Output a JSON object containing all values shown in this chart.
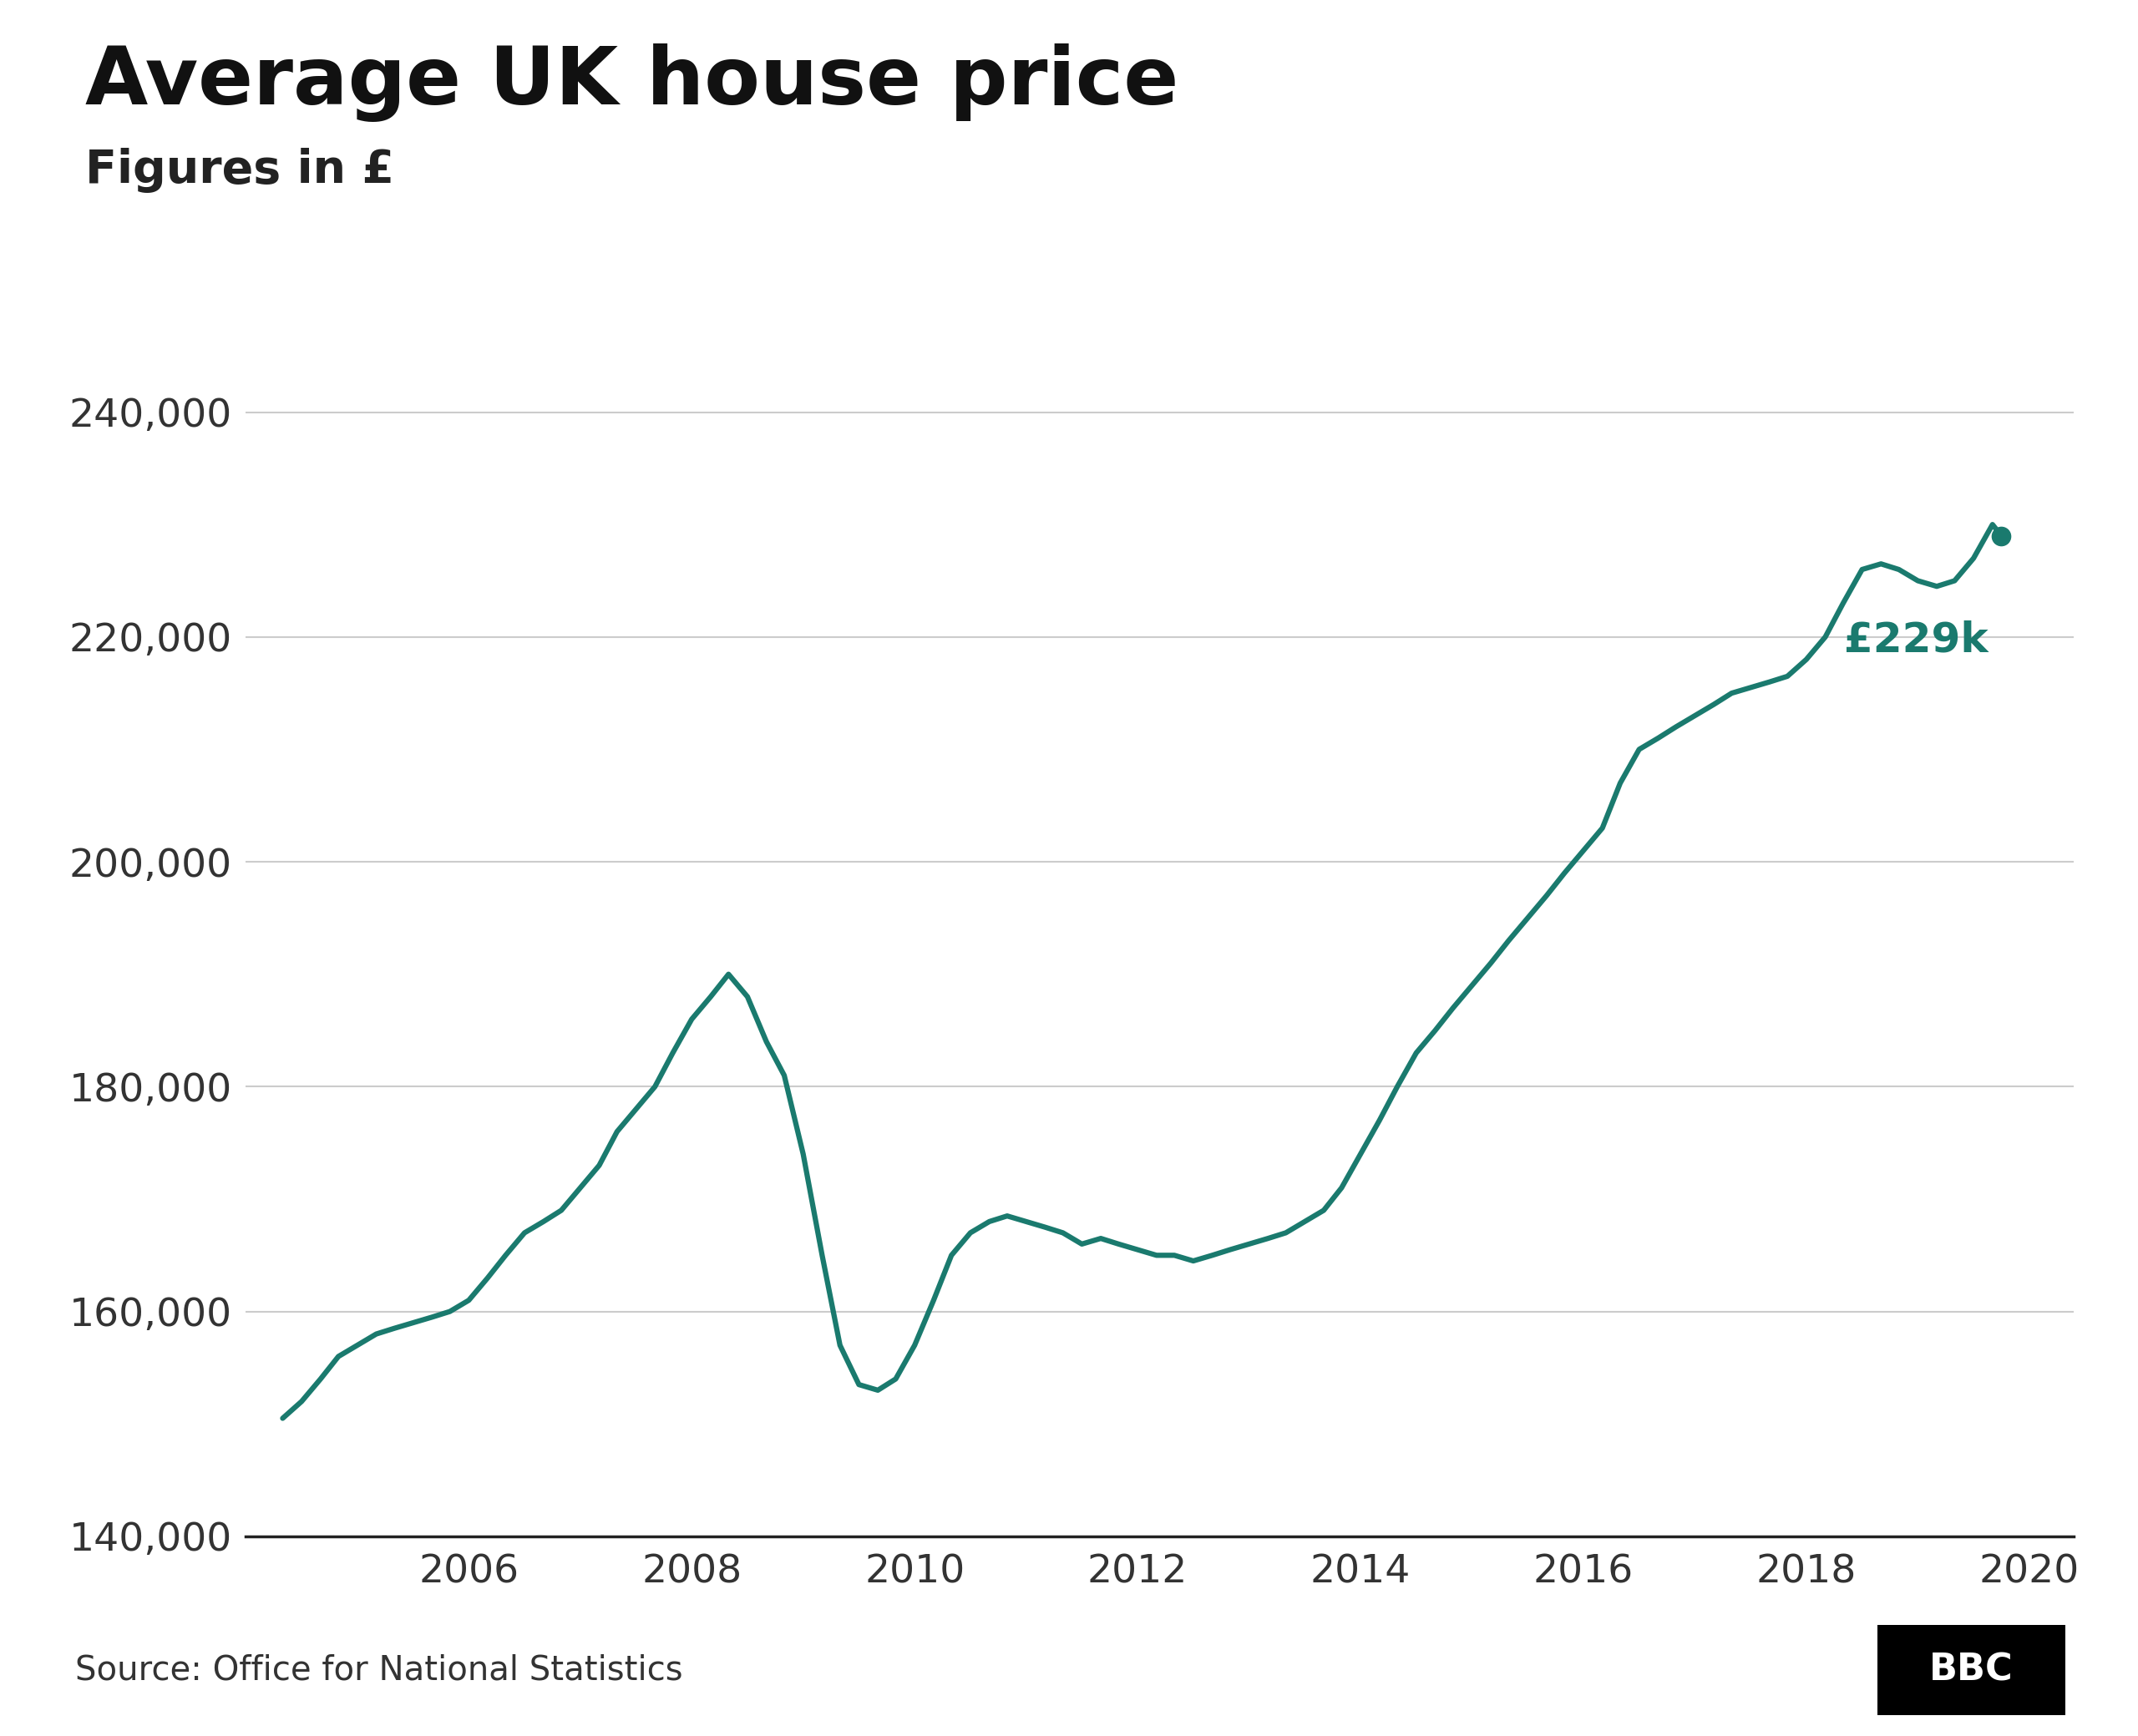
{
  "title": "Average UK house price",
  "subtitle": "Figures in £",
  "source": "Source: Office for National Statistics",
  "bbc_label": "BBC",
  "line_color": "#1a7a6e",
  "annotation_color": "#1a7a6e",
  "background_color": "#ffffff",
  "grid_color": "#cccccc",
  "ylim": [
    140000,
    245000
  ],
  "yticks": [
    140000,
    160000,
    180000,
    200000,
    220000,
    240000
  ],
  "annotation_text": "£229k",
  "last_x": 2019.75,
  "last_y": 229000,
  "xlim": [
    2004.0,
    2020.4
  ],
  "xticks": [
    2006,
    2008,
    2010,
    2012,
    2014,
    2016,
    2018,
    2020
  ],
  "data": [
    [
      2004.33,
      150500
    ],
    [
      2004.5,
      152000
    ],
    [
      2004.67,
      154000
    ],
    [
      2004.83,
      156000
    ],
    [
      2005.0,
      157000
    ],
    [
      2005.17,
      158000
    ],
    [
      2005.33,
      158500
    ],
    [
      2005.5,
      159000
    ],
    [
      2005.67,
      159500
    ],
    [
      2005.83,
      160000
    ],
    [
      2006.0,
      161000
    ],
    [
      2006.17,
      163000
    ],
    [
      2006.33,
      165000
    ],
    [
      2006.5,
      167000
    ],
    [
      2006.67,
      168000
    ],
    [
      2006.83,
      169000
    ],
    [
      2007.0,
      171000
    ],
    [
      2007.17,
      173000
    ],
    [
      2007.33,
      176000
    ],
    [
      2007.5,
      178000
    ],
    [
      2007.67,
      180000
    ],
    [
      2007.83,
      183000
    ],
    [
      2008.0,
      186000
    ],
    [
      2008.17,
      188000
    ],
    [
      2008.33,
      190000
    ],
    [
      2008.5,
      188000
    ],
    [
      2008.67,
      184000
    ],
    [
      2008.83,
      181000
    ],
    [
      2009.0,
      174000
    ],
    [
      2009.17,
      165000
    ],
    [
      2009.33,
      157000
    ],
    [
      2009.5,
      153500
    ],
    [
      2009.67,
      153000
    ],
    [
      2009.83,
      154000
    ],
    [
      2010.0,
      157000
    ],
    [
      2010.17,
      161000
    ],
    [
      2010.33,
      165000
    ],
    [
      2010.5,
      167000
    ],
    [
      2010.67,
      168000
    ],
    [
      2010.83,
      168500
    ],
    [
      2011.0,
      168000
    ],
    [
      2011.17,
      167500
    ],
    [
      2011.33,
      167000
    ],
    [
      2011.5,
      166000
    ],
    [
      2011.67,
      166500
    ],
    [
      2011.83,
      166000
    ],
    [
      2012.0,
      165500
    ],
    [
      2012.17,
      165000
    ],
    [
      2012.33,
      165000
    ],
    [
      2012.5,
      164500
    ],
    [
      2012.67,
      165000
    ],
    [
      2012.83,
      165500
    ],
    [
      2013.0,
      166000
    ],
    [
      2013.17,
      166500
    ],
    [
      2013.33,
      167000
    ],
    [
      2013.5,
      168000
    ],
    [
      2013.67,
      169000
    ],
    [
      2013.83,
      171000
    ],
    [
      2014.0,
      174000
    ],
    [
      2014.17,
      177000
    ],
    [
      2014.33,
      180000
    ],
    [
      2014.5,
      183000
    ],
    [
      2014.67,
      185000
    ],
    [
      2014.83,
      187000
    ],
    [
      2015.0,
      189000
    ],
    [
      2015.17,
      191000
    ],
    [
      2015.33,
      193000
    ],
    [
      2015.5,
      195000
    ],
    [
      2015.67,
      197000
    ],
    [
      2015.83,
      199000
    ],
    [
      2016.0,
      201000
    ],
    [
      2016.17,
      203000
    ],
    [
      2016.33,
      207000
    ],
    [
      2016.5,
      210000
    ],
    [
      2016.67,
      211000
    ],
    [
      2016.83,
      212000
    ],
    [
      2017.0,
      213000
    ],
    [
      2017.17,
      214000
    ],
    [
      2017.33,
      215000
    ],
    [
      2017.5,
      215500
    ],
    [
      2017.67,
      216000
    ],
    [
      2017.83,
      216500
    ],
    [
      2018.0,
      218000
    ],
    [
      2018.17,
      220000
    ],
    [
      2018.33,
      223000
    ],
    [
      2018.5,
      226000
    ],
    [
      2018.67,
      226500
    ],
    [
      2018.83,
      226000
    ],
    [
      2019.0,
      225000
    ],
    [
      2019.17,
      224500
    ],
    [
      2019.33,
      225000
    ],
    [
      2019.5,
      227000
    ],
    [
      2019.67,
      230000
    ],
    [
      2019.75,
      229000
    ]
  ]
}
